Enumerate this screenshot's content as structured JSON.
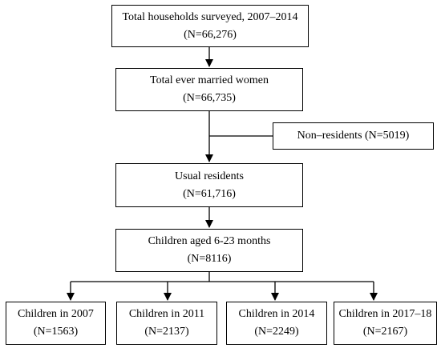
{
  "boxes": {
    "households": {
      "line1": "Total households surveyed, 2007–2014",
      "line2": "(N=66,276)"
    },
    "women": {
      "line1": "Total ever married women",
      "line2": "(N=66,735)"
    },
    "nonresidents": {
      "line1": "Non–residents (N=5019)"
    },
    "residents": {
      "line1": "Usual residents",
      "line2": "(N=61,716)"
    },
    "children": {
      "line1": "Children aged 6-23 months",
      "line2": "(N=8116)"
    },
    "c2007": {
      "line1": "Children in 2007",
      "line2": "(N=1563)"
    },
    "c2011": {
      "line1": "Children in 2011",
      "line2": "(N=2137)"
    },
    "c2014": {
      "line1": "Children in 2014",
      "line2": "(N=2249)"
    },
    "c2017": {
      "line1": "Children in 2017–18",
      "line2": "(N=2167)"
    }
  }
}
